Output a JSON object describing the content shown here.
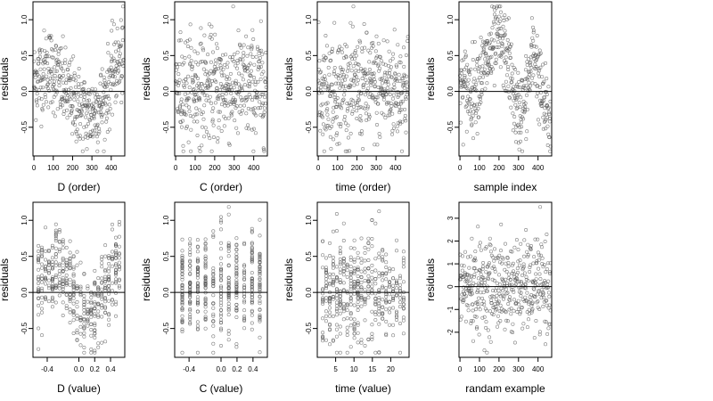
{
  "chart_data": [
    {
      "type": "scatter",
      "xlabel": "D (order)",
      "ylabel": "residuals",
      "xlim": [
        -5,
        470
      ],
      "ylim": [
        -0.9,
        1.25
      ],
      "xticks": [
        0,
        100,
        200,
        300,
        400
      ],
      "xtick_labels": [
        "0",
        "100",
        "200",
        "300",
        "400"
      ],
      "yticks": [
        -0.5,
        0.0,
        0.5,
        1.0
      ],
      "ytick_labels": [
        "-0.5",
        "0.0",
        "0.5",
        "1.0"
      ],
      "hline": 0,
      "n_points": 450,
      "point_style": "open-circle",
      "trend": [
        [
          0,
          0.15
        ],
        [
          80,
          0.35
        ],
        [
          180,
          -0.05
        ],
        [
          280,
          -0.35
        ],
        [
          360,
          -0.15
        ],
        [
          420,
          0.35
        ],
        [
          470,
          0.45
        ]
      ],
      "spread": 0.28
    },
    {
      "type": "scatter",
      "xlabel": "C (order)",
      "ylabel": "residuals",
      "xlim": [
        -5,
        470
      ],
      "ylim": [
        -0.9,
        1.25
      ],
      "xticks": [
        0,
        100,
        200,
        300,
        400
      ],
      "xtick_labels": [
        "0",
        "100",
        "200",
        "300",
        "400"
      ],
      "yticks": [
        -0.5,
        0.0,
        0.5,
        1.0
      ],
      "ytick_labels": [
        "-0.5",
        "0.0",
        "0.5",
        "1.0"
      ],
      "hline": 0,
      "n_points": 450,
      "point_style": "open-circle",
      "trend": [
        [
          0,
          0.05
        ],
        [
          470,
          0.05
        ]
      ],
      "spread": 0.38
    },
    {
      "type": "scatter",
      "xlabel": "time (order)",
      "ylabel": "residuals",
      "xlim": [
        -5,
        470
      ],
      "ylim": [
        -0.9,
        1.25
      ],
      "xticks": [
        0,
        100,
        200,
        300,
        400
      ],
      "xtick_labels": [
        "0",
        "100",
        "200",
        "300",
        "400"
      ],
      "yticks": [
        -0.5,
        0.0,
        0.5,
        1.0
      ],
      "ytick_labels": [
        "-0.5",
        "0.0",
        "0.5",
        "1.0"
      ],
      "hline": 0,
      "n_points": 450,
      "point_style": "open-circle",
      "trend": [
        [
          0,
          0.05
        ],
        [
          470,
          0.05
        ]
      ],
      "spread": 0.38
    },
    {
      "type": "scatter",
      "xlabel": "sample index",
      "ylabel": "residuals",
      "xlim": [
        -5,
        470
      ],
      "ylim": [
        -0.9,
        1.25
      ],
      "xticks": [
        0,
        100,
        200,
        300,
        400
      ],
      "xtick_labels": [
        "0",
        "100",
        "200",
        "300",
        "400"
      ],
      "yticks": [
        -0.5,
        0.0,
        0.5,
        1.0
      ],
      "ytick_labels": [
        "-0.5",
        "0.0",
        "0.5",
        "1.0"
      ],
      "hline": 0,
      "n_points": 450,
      "point_style": "open-circle",
      "trend": [
        [
          0,
          0.1
        ],
        [
          60,
          0.0
        ],
        [
          120,
          0.3
        ],
        [
          200,
          0.75
        ],
        [
          250,
          0.4
        ],
        [
          290,
          -0.3
        ],
        [
          330,
          -0.2
        ],
        [
          380,
          0.6
        ],
        [
          420,
          -0.1
        ],
        [
          470,
          -0.5
        ]
      ],
      "spread": 0.28
    },
    {
      "type": "scatter",
      "xlabel": "D (value)",
      "ylabel": "residuals",
      "xlim": [
        -0.58,
        0.58
      ],
      "ylim": [
        -0.9,
        1.25
      ],
      "xticks": [
        -0.4,
        0.0,
        0.2,
        0.4
      ],
      "xtick_labels": [
        "-0.4",
        "0.0",
        "0.2",
        "0.4"
      ],
      "yticks": [
        -0.5,
        0.0,
        0.5,
        1.0
      ],
      "ytick_labels": [
        "-0.5",
        "0.0",
        "0.5",
        "1.0"
      ],
      "hline": 0,
      "n_points": 450,
      "point_style": "open-circle",
      "x_columns": 24,
      "trend": [
        [
          -0.55,
          0.1
        ],
        [
          -0.3,
          0.4
        ],
        [
          -0.05,
          0.0
        ],
        [
          0.1,
          -0.35
        ],
        [
          0.25,
          -0.1
        ],
        [
          0.55,
          0.45
        ]
      ],
      "spread": 0.28
    },
    {
      "type": "scatter",
      "xlabel": "C (value)",
      "ylabel": "residuals",
      "xlim": [
        -0.58,
        0.58
      ],
      "ylim": [
        -0.9,
        1.25
      ],
      "xticks": [
        -0.4,
        0.0,
        0.2,
        0.4
      ],
      "xtick_labels": [
        "-0.4",
        "0.0",
        "0.2",
        "0.4"
      ],
      "yticks": [
        -0.5,
        0.0,
        0.5,
        1.0
      ],
      "ytick_labels": [
        "-0.5",
        "0.0",
        "0.5",
        "1.0"
      ],
      "hline": 0,
      "n_points": 450,
      "point_style": "open-circle",
      "x_columns": 11,
      "trend": [
        [
          -0.55,
          0.05
        ],
        [
          0.55,
          0.05
        ]
      ],
      "spread": 0.38
    },
    {
      "type": "scatter",
      "xlabel": "time (value)",
      "ylabel": "residuals",
      "xlim": [
        0,
        25
      ],
      "ylim": [
        -0.9,
        1.25
      ],
      "xticks": [
        5,
        10,
        15,
        20
      ],
      "xtick_labels": [
        "5",
        "10",
        "15",
        "20"
      ],
      "yticks": [
        -0.5,
        0.0,
        0.5,
        1.0
      ],
      "ytick_labels": [
        "-0.5",
        "0.0",
        "0.5",
        "1.0"
      ],
      "hline": 0,
      "n_points": 450,
      "point_style": "open-circle",
      "x_columns": 24,
      "trend": [
        [
          0,
          0.05
        ],
        [
          25,
          0.05
        ]
      ],
      "spread": 0.38
    },
    {
      "type": "scatter",
      "xlabel": "randam example",
      "ylabel": "residuals",
      "xlim": [
        -5,
        470
      ],
      "ylim": [
        -3.1,
        3.7
      ],
      "xticks": [
        0,
        100,
        200,
        300,
        400
      ],
      "xtick_labels": [
        "0",
        "100",
        "200",
        "300",
        "400"
      ],
      "yticks": [
        -2,
        -1,
        0,
        1,
        2,
        3
      ],
      "ytick_labels": [
        "-2",
        "-1",
        "0",
        "1",
        "2",
        "3"
      ],
      "hline": 0,
      "n_points": 450,
      "point_style": "open-circle",
      "trend": [
        [
          0,
          0.0
        ],
        [
          470,
          0.0
        ]
      ],
      "spread": 1.0
    }
  ]
}
